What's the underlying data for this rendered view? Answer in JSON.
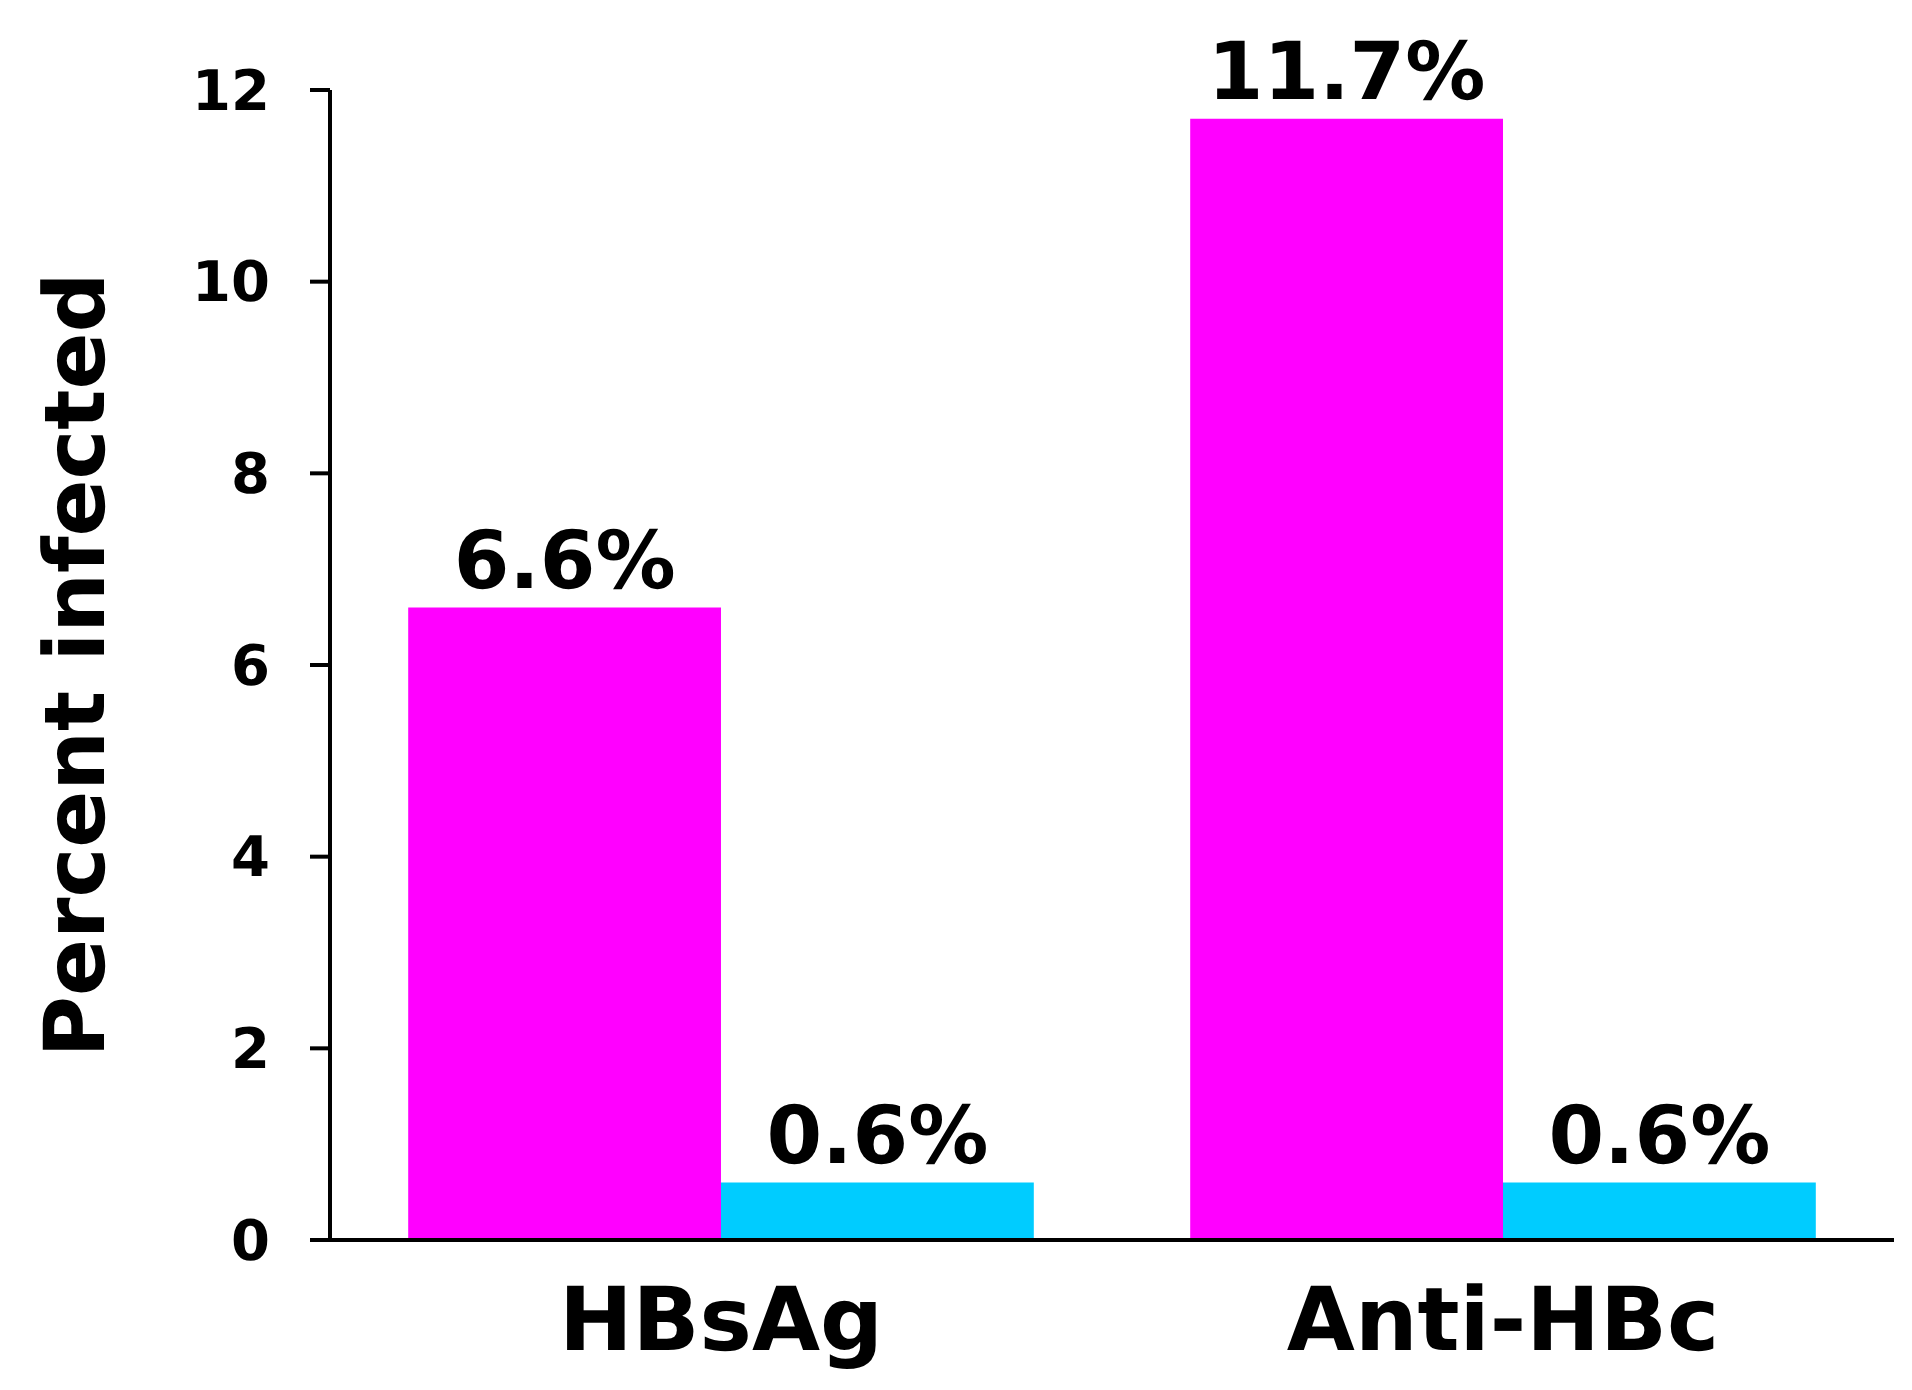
{
  "chart_data": {
    "type": "bar",
    "ylabel": "Percent infected",
    "categories": [
      "HBsAg",
      "Anti-HBc"
    ],
    "series": [
      {
        "color": "#ff00ff",
        "values": [
          6.6,
          11.7
        ],
        "value_labels": [
          "6.6%",
          "11.7%"
        ]
      },
      {
        "color": "#00ccff",
        "values": [
          0.6,
          0.6
        ],
        "value_labels": [
          "0.6%",
          "0.6%"
        ]
      }
    ],
    "ylim": [
      0,
      12
    ],
    "yticks": [
      0,
      2,
      4,
      6,
      8,
      10,
      12
    ],
    "grid": false
  }
}
